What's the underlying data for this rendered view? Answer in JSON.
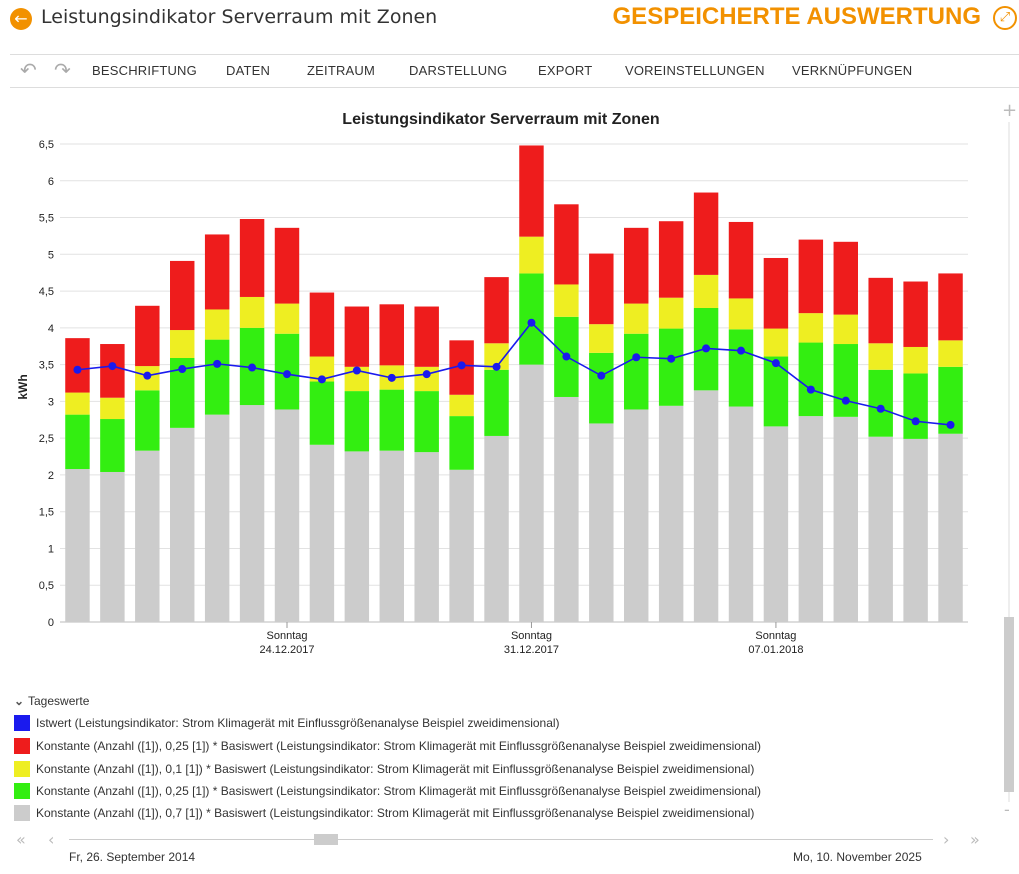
{
  "header": {
    "title": "Leistungsindikator Serverraum mit Zonen",
    "saved_label": "GESPEICHERTE AUSWERTUNG",
    "back_icon": "back-arrow-icon",
    "expand_icon": "expand-icon"
  },
  "toolbar": {
    "undo_icon": "undo-icon",
    "redo_icon": "redo-icon",
    "items": [
      "BESCHRIFTUNG",
      "DATEN",
      "ZEITRAUM",
      "DARSTELLUNG",
      "EXPORT",
      "VOREINSTELLUNGEN",
      "VERKNÜPFUNGEN"
    ]
  },
  "chart_data": {
    "type": "bar",
    "title": "Leistungsindikator Serverraum mit Zonen",
    "ylabel": "kWh",
    "ylim": [
      0,
      6.5
    ],
    "yticks": [
      "0",
      "0,5",
      "1",
      "1,5",
      "2",
      "2,5",
      "3",
      "3,5",
      "4",
      "4,5",
      "5",
      "5,5",
      "6",
      "6,5"
    ],
    "grid": true,
    "stacked": true,
    "xtick_labels": [
      {
        "index": 6,
        "day": "Sonntag",
        "date": "24.12.2017"
      },
      {
        "index": 13,
        "day": "Sonntag",
        "date": "31.12.2017"
      },
      {
        "index": 20,
        "day": "Sonntag",
        "date": "07.01.2018"
      }
    ],
    "istwert": [
      3.43,
      3.48,
      3.35,
      3.44,
      3.51,
      3.46,
      3.37,
      3.3,
      3.42,
      3.32,
      3.37,
      3.49,
      3.47,
      4.07,
      3.61,
      3.35,
      3.6,
      3.58,
      3.72,
      3.69,
      3.52,
      3.16,
      3.01,
      2.9,
      2.73,
      2.68
    ],
    "series": [
      {
        "key": "gray",
        "color": "#cccccc",
        "values": [
          2.08,
          2.04,
          2.33,
          2.64,
          2.82,
          2.95,
          2.89,
          2.41,
          2.32,
          2.33,
          2.31,
          2.07,
          2.53,
          3.5,
          3.06,
          2.7,
          2.89,
          2.94,
          3.15,
          2.93,
          2.66,
          2.8,
          2.79,
          2.52,
          2.49,
          2.56
        ]
      },
      {
        "key": "green",
        "color": "#33ee11",
        "values": [
          0.74,
          0.72,
          0.82,
          0.95,
          1.02,
          1.05,
          1.03,
          0.86,
          0.82,
          0.83,
          0.83,
          0.73,
          0.9,
          1.24,
          1.09,
          0.96,
          1.03,
          1.05,
          1.12,
          1.05,
          0.95,
          1.0,
          0.99,
          0.91,
          0.89,
          0.91
        ]
      },
      {
        "key": "yellow",
        "color": "#eeee22",
        "values": [
          0.3,
          0.29,
          0.33,
          0.38,
          0.41,
          0.42,
          0.41,
          0.34,
          0.33,
          0.33,
          0.33,
          0.29,
          0.36,
          0.5,
          0.44,
          0.39,
          0.41,
          0.42,
          0.45,
          0.42,
          0.38,
          0.4,
          0.4,
          0.36,
          0.36,
          0.36
        ]
      },
      {
        "key": "red",
        "color": "#ee1c1c",
        "values": [
          0.74,
          0.73,
          0.82,
          0.94,
          1.02,
          1.06,
          1.03,
          0.87,
          0.82,
          0.83,
          0.82,
          0.74,
          0.9,
          1.24,
          1.09,
          0.96,
          1.03,
          1.04,
          1.12,
          1.04,
          0.96,
          1.0,
          0.99,
          0.89,
          0.89,
          0.91
        ]
      }
    ]
  },
  "legend": {
    "group_label": "Tageswerte",
    "items": [
      {
        "color": "#1a1aee",
        "label": "Istwert (Leistungsindikator: Strom Klimagerät mit Einflussgrößenanalyse Beispiel zweidimensional)"
      },
      {
        "color": "#ee1c1c",
        "label": "Konstante (Anzahl ([1]), 0,25 [1]) * Basiswert (Leistungsindikator: Strom Klimagerät mit Einflussgrößenanalyse Beispiel zweidimensional)"
      },
      {
        "color": "#eeee22",
        "label": "Konstante (Anzahl ([1]), 0,1 [1]) * Basiswert (Leistungsindikator: Strom Klimagerät mit Einflussgrößenanalyse Beispiel zweidimensional)"
      },
      {
        "color": "#33ee11",
        "label": "Konstante (Anzahl ([1]), 0,25 [1]) * Basiswert (Leistungsindikator: Strom Klimagerät mit Einflussgrößenanalyse Beispiel zweidimensional)"
      },
      {
        "color": "#cccccc",
        "label": "Konstante (Anzahl ([1]), 0,7 [1]) * Basiswert (Leistungsindikator: Strom Klimagerät mit Einflussgrößenanalyse Beispiel zweidimensional)"
      }
    ]
  },
  "range": {
    "start": "Fr, 26. September 2014",
    "end": "Mo, 10. November 2025"
  }
}
